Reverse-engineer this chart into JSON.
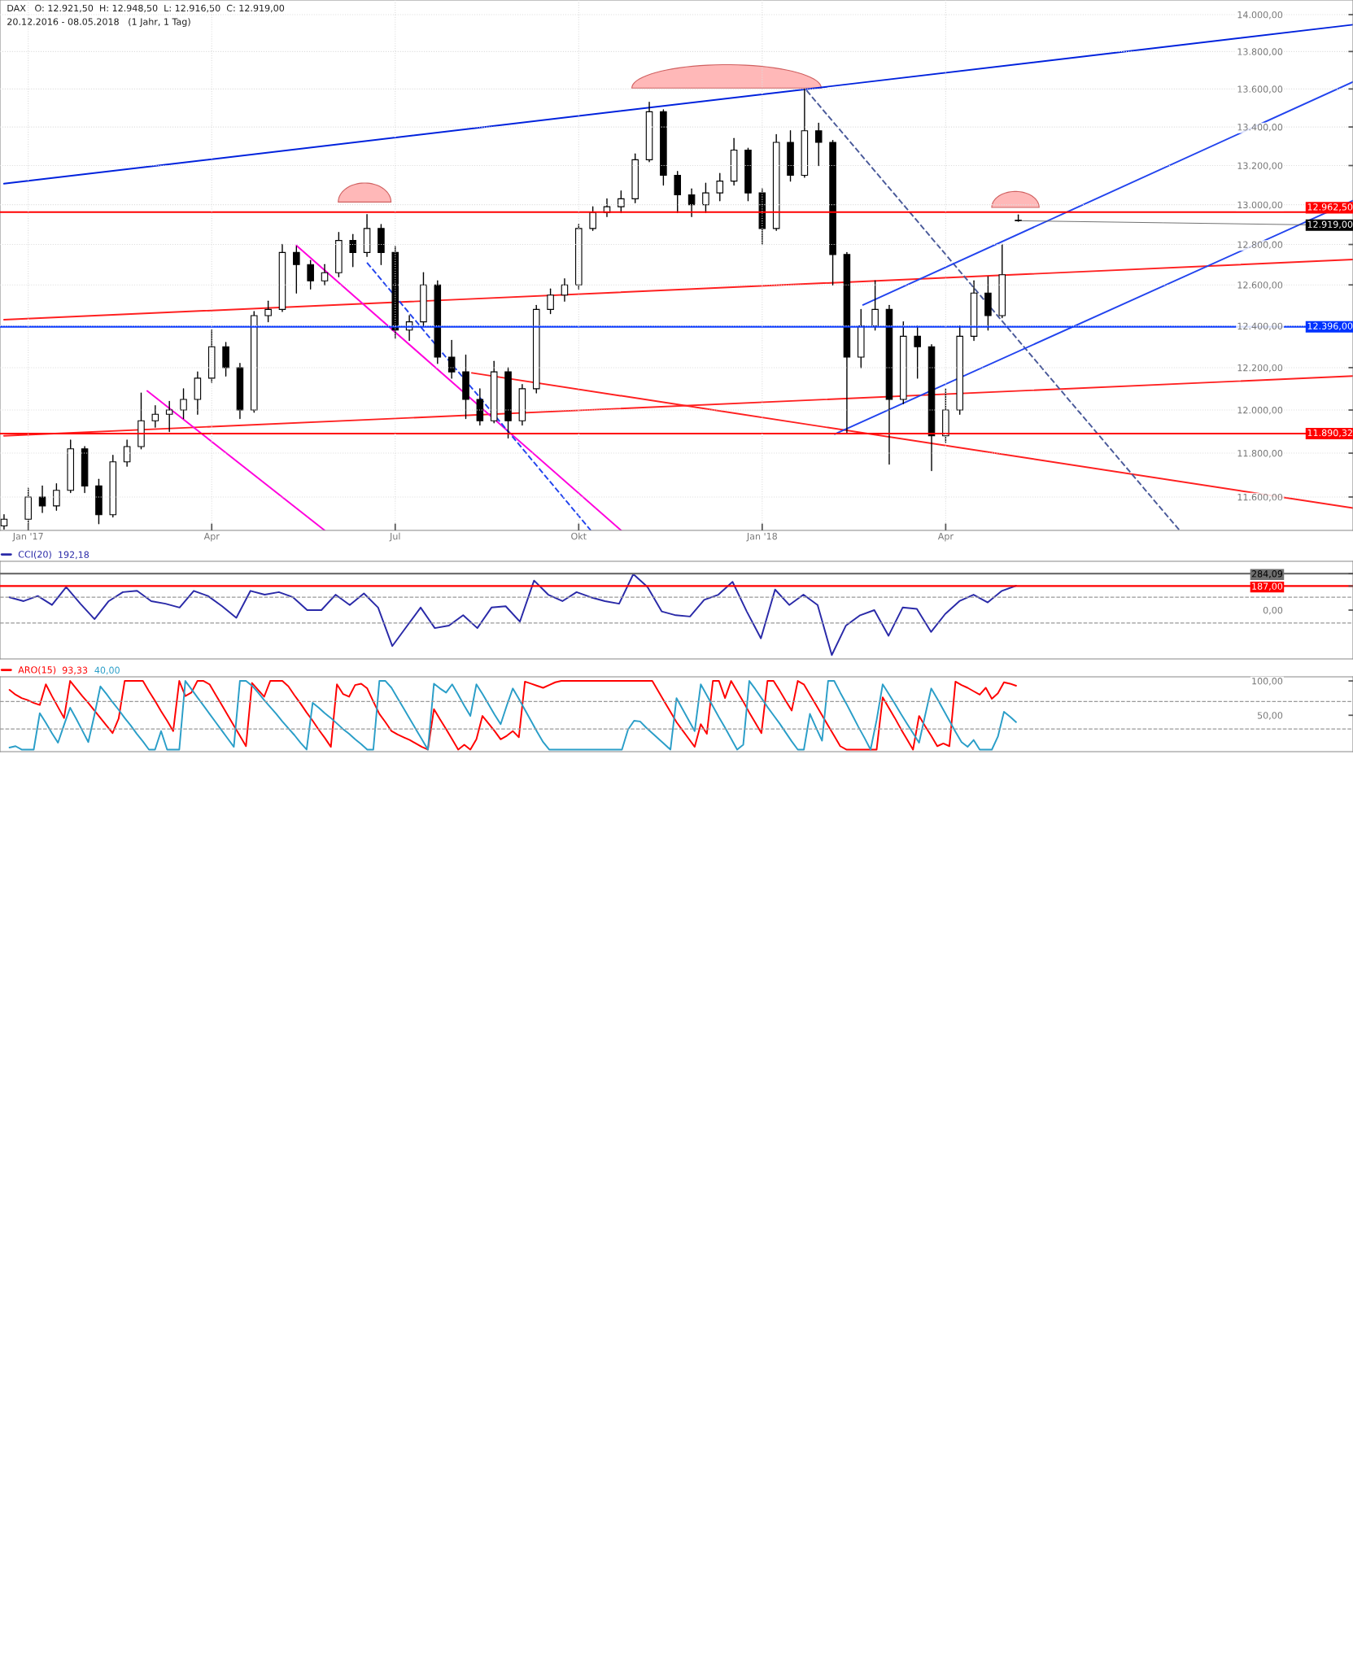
{
  "chart_data": [
    {
      "type": "candlestick",
      "title": "DAX   O: 12.921,50  H: 12.948,50  L: 12.916,50  C: 12.919,00",
      "subtitle": "20.12.2016 - 08.05.2018   (1 Jahr, 1 Tag)",
      "x": [
        "2016-12-21",
        "2017-01-02",
        "2017-01-09",
        "2017-01-16",
        "2017-01-23",
        "2017-01-30",
        "2017-02-06",
        "2017-02-13",
        "2017-02-20",
        "2017-02-27",
        "2017-03-06",
        "2017-03-13",
        "2017-03-20",
        "2017-03-27",
        "2017-04-03",
        "2017-04-10",
        "2017-04-17",
        "2017-04-24",
        "2017-05-01",
        "2017-05-08",
        "2017-05-15",
        "2017-05-22",
        "2017-05-29",
        "2017-06-05",
        "2017-06-12",
        "2017-06-19",
        "2017-06-26",
        "2017-07-03",
        "2017-07-10",
        "2017-07-17",
        "2017-07-24",
        "2017-07-31",
        "2017-08-07",
        "2017-08-14",
        "2017-08-21",
        "2017-08-28",
        "2017-09-04",
        "2017-09-11",
        "2017-09-18",
        "2017-09-25",
        "2017-10-02",
        "2017-10-09",
        "2017-10-16",
        "2017-10-23",
        "2017-10-30",
        "2017-11-06",
        "2017-11-13",
        "2017-11-20",
        "2017-11-27",
        "2017-12-04",
        "2017-12-11",
        "2017-12-18",
        "2017-12-25",
        "2018-01-01",
        "2018-01-08",
        "2018-01-15",
        "2018-01-22",
        "2018-01-29",
        "2018-02-05",
        "2018-02-12",
        "2018-02-19",
        "2018-02-26",
        "2018-03-05",
        "2018-03-12",
        "2018-03-19",
        "2018-03-26",
        "2018-04-02",
        "2018-04-09",
        "2018-04-16",
        "2018-04-23",
        "2018-04-30",
        "2018-05-08"
      ],
      "ohlc": [
        [
          11470,
          11520,
          11455,
          11500
        ],
        [
          11500,
          11640,
          11480,
          11600
        ],
        [
          11600,
          11650,
          11530,
          11560
        ],
        [
          11560,
          11660,
          11540,
          11630
        ],
        [
          11630,
          11860,
          11620,
          11820
        ],
        [
          11820,
          11830,
          11620,
          11650
        ],
        [
          11650,
          11680,
          11480,
          11520
        ],
        [
          11520,
          11790,
          11510,
          11760
        ],
        [
          11760,
          11860,
          11740,
          11830
        ],
        [
          11830,
          12080,
          11820,
          11950
        ],
        [
          11950,
          12020,
          11920,
          11980
        ],
        [
          11980,
          12040,
          11900,
          12000
        ],
        [
          12000,
          12100,
          11960,
          12050
        ],
        [
          12050,
          12180,
          11980,
          12150
        ],
        [
          12150,
          12380,
          12130,
          12300
        ],
        [
          12300,
          12320,
          12160,
          12200
        ],
        [
          12200,
          12220,
          11960,
          12000
        ],
        [
          12000,
          12470,
          11990,
          12450
        ],
        [
          12450,
          12520,
          12420,
          12480
        ],
        [
          12480,
          12800,
          12470,
          12760
        ],
        [
          12760,
          12790,
          12560,
          12700
        ],
        [
          12700,
          12720,
          12580,
          12620
        ],
        [
          12620,
          12700,
          12600,
          12660
        ],
        [
          12660,
          12860,
          12640,
          12820
        ],
        [
          12820,
          12850,
          12690,
          12760
        ],
        [
          12760,
          12950,
          12740,
          12880
        ],
        [
          12880,
          12900,
          12700,
          12760
        ],
        [
          12760,
          12790,
          12340,
          12380
        ],
        [
          12380,
          12450,
          12330,
          12420
        ],
        [
          12420,
          12660,
          12400,
          12600
        ],
        [
          12600,
          12620,
          12220,
          12250
        ],
        [
          12250,
          12330,
          12150,
          12180
        ],
        [
          12180,
          12260,
          11960,
          12050
        ],
        [
          12050,
          12100,
          11930,
          11950
        ],
        [
          11950,
          12230,
          11940,
          12180
        ],
        [
          12180,
          12200,
          11870,
          11950
        ],
        [
          11950,
          12120,
          11930,
          12100
        ],
        [
          12100,
          12500,
          12080,
          12480
        ],
        [
          12480,
          12580,
          12460,
          12550
        ],
        [
          12550,
          12630,
          12520,
          12600
        ],
        [
          12600,
          12900,
          12580,
          12880
        ],
        [
          12880,
          12990,
          12870,
          12960
        ],
        [
          12960,
          13030,
          12940,
          12990
        ],
        [
          12990,
          13070,
          12960,
          13030
        ],
        [
          13030,
          13260,
          13010,
          13230
        ],
        [
          13230,
          13530,
          13220,
          13480
        ],
        [
          13480,
          13490,
          13100,
          13150
        ],
        [
          13150,
          13170,
          12960,
          13050
        ],
        [
          13050,
          13080,
          12940,
          13000
        ],
        [
          13000,
          13110,
          12960,
          13060
        ],
        [
          13060,
          13160,
          13020,
          13120
        ],
        [
          13120,
          13340,
          13100,
          13280
        ],
        [
          13280,
          13290,
          13020,
          13060
        ],
        [
          13060,
          13080,
          12800,
          12880
        ],
        [
          12880,
          13360,
          12870,
          13320
        ],
        [
          13320,
          13380,
          13120,
          13150
        ],
        [
          13150,
          13600,
          13140,
          13380
        ],
        [
          13380,
          13420,
          13200,
          13320
        ],
        [
          13320,
          13330,
          12600,
          12750
        ],
        [
          12750,
          12760,
          11890,
          12250
        ],
        [
          12250,
          12480,
          12200,
          12400
        ],
        [
          12400,
          12620,
          12380,
          12480
        ],
        [
          12480,
          12500,
          11750,
          12050
        ],
        [
          12050,
          12420,
          12030,
          12350
        ],
        [
          12350,
          12400,
          12150,
          12300
        ],
        [
          12300,
          12310,
          11720,
          11880
        ],
        [
          11880,
          12100,
          11850,
          12000
        ],
        [
          12000,
          12400,
          11980,
          12350
        ],
        [
          12350,
          12620,
          12330,
          12560
        ],
        [
          12560,
          12640,
          12380,
          12450
        ],
        [
          12450,
          12800,
          12440,
          12650
        ],
        [
          12921.5,
          12948.5,
          12916.5,
          12919
        ]
      ],
      "series": [
        {
          "type": "line",
          "color": "#0022dd",
          "x": [
            "2016-12-21",
            "2018-10-21"
          ],
          "values": [
            13107,
            13945
          ]
        },
        {
          "type": "line",
          "color": "#ff2020",
          "x": [
            "2016-12-21",
            "2018-10-21"
          ],
          "values": [
            12430,
            12725
          ]
        },
        {
          "type": "line",
          "color": "#ff2020",
          "x": [
            "2016-12-21",
            "2018-10-21"
          ],
          "values": [
            11880,
            12160
          ]
        },
        {
          "type": "line",
          "color": "#ff2020",
          "x": [
            "2017-08-10",
            "2018-10-21"
          ],
          "values": [
            12175,
            11550
          ]
        },
        {
          "type": "line",
          "color": "#ff00dd",
          "x": [
            "2017-03-02",
            "2017-05-29"
          ],
          "values": [
            12090,
            11450
          ]
        },
        {
          "type": "line",
          "color": "#ff00dd",
          "x": [
            "2017-05-15",
            "2017-10-23"
          ],
          "values": [
            12795,
            11450
          ]
        },
        {
          "type": "line",
          "color": "#2244ee",
          "line_style": "dashed",
          "x": [
            "2017-06-19",
            "2017-10-08"
          ],
          "values": [
            12710,
            11450
          ]
        },
        {
          "type": "line",
          "color": "#4a5a9a",
          "line_style": "dashed",
          "x": [
            "2018-01-23",
            "2018-07-27"
          ],
          "values": [
            13592,
            11450
          ]
        },
        {
          "type": "line",
          "color": "#2244ee",
          "x": [
            "2018-02-20",
            "2018-10-21"
          ],
          "values": [
            12502,
            13638
          ]
        },
        {
          "type": "line",
          "color": "#2244ee",
          "x": [
            "2018-02-06",
            "2018-10-21"
          ],
          "values": [
            11888,
            13021
          ]
        }
      ],
      "xlim": [
        "2016-12-19",
        "2018-10-21"
      ],
      "xticks": [
        {
          "value": "2017-01-02",
          "label": "Jan '17"
        },
        {
          "value": "2017-04-03",
          "label": "Apr"
        },
        {
          "value": "2017-07-03",
          "label": "Jul"
        },
        {
          "value": "2017-10-02",
          "label": "Okt"
        },
        {
          "value": "2018-01-01",
          "label": "Jan '18"
        },
        {
          "value": "2018-04-02",
          "label": "Apr"
        }
      ],
      "ylim": [
        11450,
        14080
      ],
      "log": "y",
      "yticks": [
        {
          "value": 11600,
          "label": "11.600,00"
        },
        {
          "value": 11800,
          "label": "11.800,00"
        },
        {
          "value": 12000,
          "label": "12.000,00"
        },
        {
          "value": 12200,
          "label": "12.200,00"
        },
        {
          "value": 12400,
          "label": "12.400,00"
        },
        {
          "value": 12600,
          "label": "12.600,00"
        },
        {
          "value": 12800,
          "label": "12.800,00"
        },
        {
          "value": 13000,
          "label": "13.000,00"
        },
        {
          "value": 13200,
          "label": "13.200,00"
        },
        {
          "value": 13400,
          "label": "13.400,00"
        },
        {
          "value": 13600,
          "label": "13.600,00"
        },
        {
          "value": 13800,
          "label": "13.800,00"
        },
        {
          "value": 14000,
          "label": "14.000,00"
        }
      ],
      "grid": true,
      "ref_lines": [
        {
          "axis": "y",
          "value": 12962.5,
          "label": "12.962,50",
          "color": "#ff0000"
        },
        {
          "axis": "y",
          "value": 12396,
          "label": "12.396,00",
          "color": "#0033ff"
        },
        {
          "axis": "y",
          "value": 11890.32,
          "label": "11.890,32",
          "color": "#ff0000"
        }
      ],
      "annotations": [
        {
          "text": "12.919,00",
          "x": "2018-05-08",
          "y": 12919
        }
      ]
    },
    {
      "type": "line",
      "legend": "top left",
      "annotations": [
        "192,18"
      ],
      "categories": [
        null,
        null,
        null,
        null,
        null,
        null,
        null,
        null,
        null,
        null,
        null,
        null,
        null,
        null,
        null,
        null,
        null,
        null,
        null,
        null,
        null,
        null,
        null,
        null,
        null,
        null,
        null,
        null,
        null,
        null,
        null,
        null,
        null,
        null,
        null,
        null,
        null,
        null,
        null,
        null,
        null,
        null,
        null,
        null,
        null,
        null,
        null,
        null,
        null,
        null,
        null,
        null,
        null,
        null,
        null,
        null,
        null,
        null,
        null,
        null,
        null,
        null,
        null,
        null,
        null,
        null,
        null,
        null,
        null,
        null,
        null,
        null
      ],
      "series": [
        {
          "name": "CCI(20)",
          "color": "#2a2aa8",
          "values": [
            100,
            70,
            110,
            40,
            180,
            50,
            -70,
            70,
            140,
            150,
            70,
            50,
            20,
            150,
            110,
            30,
            -60,
            150,
            120,
            140,
            100,
            0,
            0,
            120,
            40,
            130,
            20,
            -280,
            -130,
            20,
            -140,
            -120,
            -40,
            -140,
            20,
            30,
            -90,
            230,
            120,
            70,
            140,
            100,
            70,
            50,
            280,
            180,
            -10,
            -40,
            -50,
            80,
            120,
            220,
            -10,
            -220,
            160,
            40,
            120,
            40,
            -350,
            -120,
            -40,
            0,
            -200,
            20,
            10,
            -170,
            -30,
            70,
            120,
            60,
            150,
            190
          ]
        }
      ],
      "ylim": [
        -380,
        380
      ],
      "yticks": [
        {
          "value": 0,
          "label": "0,00"
        },
        {
          "value": 187,
          "label": "187,00"
        },
        {
          "value": 284.09,
          "label": "284,09"
        }
      ],
      "tick_labels": "y",
      "ref_lines": [
        {
          "axis": "y",
          "value": 284.09,
          "color": "#707070"
        },
        {
          "axis": "y",
          "value": 187,
          "color": "#ff0000"
        },
        {
          "axis": "y",
          "value": 100,
          "color": "#999999",
          "line_style": "dashed"
        },
        {
          "axis": "y",
          "value": -100,
          "color": "#999999",
          "line_style": "dashed"
        }
      ]
    },
    {
      "type": "line",
      "legend": "top left",
      "annotations": [
        "93,33",
        "40,00"
      ],
      "categories": [
        null,
        null,
        null,
        null,
        null,
        null,
        null,
        null,
        null,
        null,
        null,
        null,
        null,
        null,
        null,
        null,
        null,
        null,
        null,
        null,
        null,
        null,
        null,
        null,
        null,
        null,
        null,
        null,
        null,
        null,
        null,
        null,
        null,
        null,
        null,
        null,
        null,
        null,
        null,
        null,
        null,
        null,
        null,
        null,
        null,
        null,
        null,
        null,
        null,
        null,
        null,
        null,
        null,
        null,
        null,
        null,
        null,
        null,
        null,
        null,
        null,
        null,
        null,
        null,
        null,
        null,
        null,
        null,
        null,
        null,
        null,
        null,
        null,
        null,
        null,
        null,
        null,
        null,
        null,
        null,
        null,
        null,
        null,
        null,
        null,
        null,
        null,
        null,
        null,
        null,
        null,
        null,
        null,
        null,
        null,
        null,
        null,
        null,
        null,
        null,
        null,
        null,
        null,
        null,
        null,
        null,
        null,
        null,
        null,
        null,
        null,
        null,
        null,
        null,
        null,
        null,
        null,
        null,
        null,
        null,
        null,
        null,
        null,
        null,
        null,
        null,
        null,
        null,
        null,
        null,
        null,
        null,
        null,
        null,
        null,
        null,
        null,
        null,
        null,
        null,
        null,
        null,
        null,
        null,
        null,
        null,
        null,
        null,
        null,
        null,
        null,
        null,
        null,
        null,
        null,
        null,
        null,
        null,
        null,
        null,
        null,
        null,
        null,
        null,
        null,
        null,
        null
      ],
      "series": [
        {
          "name": "ARO(15)",
          "color": "#ff0000",
          "values": [
            87,
            80,
            75,
            72,
            68,
            65,
            95,
            78,
            62,
            46,
            100,
            89,
            78,
            68,
            57,
            46,
            35,
            24,
            45,
            100,
            100,
            100,
            100,
            85,
            71,
            56,
            42,
            27,
            100,
            78,
            83,
            100,
            100,
            95,
            80,
            65,
            50,
            35,
            20,
            5,
            97,
            87,
            77,
            100,
            100,
            100,
            92,
            79,
            67,
            54,
            42,
            29,
            17,
            4,
            95,
            81,
            77,
            94,
            96,
            89,
            70,
            52,
            40,
            27,
            22,
            18,
            14,
            9,
            4,
            0,
            59,
            44,
            30,
            15,
            0,
            7,
            0,
            15,
            49,
            38,
            27,
            15,
            20,
            27,
            18,
            99,
            96,
            93,
            90,
            94,
            98,
            100,
            100,
            100,
            100,
            100,
            100,
            100,
            100,
            100,
            100,
            100,
            100,
            100,
            100,
            100,
            100,
            85,
            70,
            55,
            40,
            28,
            16,
            4,
            37,
            23,
            100,
            100,
            75,
            100,
            85,
            70,
            54,
            39,
            24,
            100,
            100,
            86,
            71,
            57,
            100,
            95,
            80,
            65,
            50,
            35,
            20,
            5,
            0,
            0,
            0,
            0,
            0,
            0,
            76,
            61,
            46,
            30,
            15,
            0,
            49,
            34,
            20,
            5,
            9,
            5,
            99,
            94,
            90,
            85,
            80,
            90,
            74,
            82,
            98,
            96,
            93
          ]
        },
        {
          "color": "#2a9ec8",
          "values": [
            3,
            5,
            0,
            0,
            0,
            53,
            39,
            24,
            10,
            36,
            61,
            45,
            28,
            11,
            50,
            92,
            81,
            69,
            58,
            46,
            35,
            23,
            12,
            0,
            0,
            27,
            0,
            0,
            0,
            100,
            88,
            76,
            64,
            52,
            40,
            28,
            16,
            4,
            100,
            100,
            93,
            83,
            72,
            62,
            52,
            41,
            31,
            21,
            10,
            0,
            68,
            61,
            53,
            46,
            38,
            30,
            23,
            15,
            8,
            0,
            0,
            100,
            100,
            90,
            75,
            60,
            45,
            30,
            15,
            0,
            96,
            89,
            83,
            95,
            80,
            64,
            49,
            95,
            81,
            66,
            51,
            37,
            64,
            89,
            74,
            58,
            42,
            26,
            11,
            0,
            0,
            0,
            0,
            0,
            0,
            0,
            0,
            0,
            0,
            0,
            0,
            0,
            29,
            42,
            41,
            32,
            24,
            16,
            8,
            0,
            75,
            59,
            43,
            27,
            95,
            79,
            63,
            47,
            32,
            16,
            0,
            7,
            100,
            88,
            75,
            62,
            50,
            38,
            25,
            12,
            0,
            0,
            52,
            32,
            13,
            100,
            100,
            83,
            67,
            50,
            33,
            17,
            0,
            43,
            95,
            81,
            67,
            52,
            38,
            24,
            10,
            50,
            89,
            74,
            58,
            42,
            26,
            11,
            4,
            14,
            0,
            0,
            0,
            19,
            55,
            48,
            40
          ]
        }
      ],
      "ylim": [
        -3,
        106
      ],
      "yticks": [
        {
          "value": 50,
          "label": "50,00"
        },
        {
          "value": 100,
          "label": "100,00"
        }
      ],
      "tick_labels": "y",
      "ref_lines": [
        {
          "axis": "y",
          "value": 70,
          "color": "#999999",
          "line_style": "dashed"
        },
        {
          "axis": "y",
          "value": 30,
          "color": "#999999",
          "line_style": "dashed"
        }
      ]
    }
  ]
}
